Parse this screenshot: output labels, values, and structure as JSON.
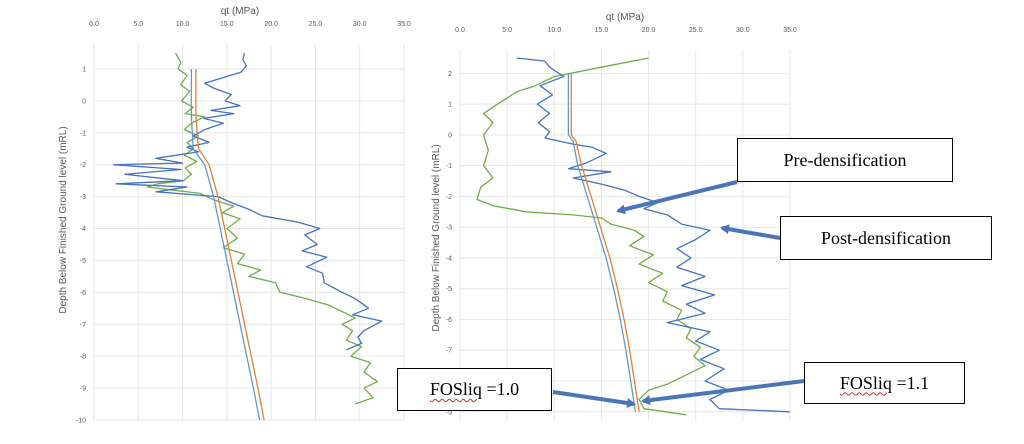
{
  "chart_data": [
    {
      "type": "line",
      "title": "qt (MPa)",
      "xlabel": "qt (MPa)",
      "ylabel": "Depth Below Finished Ground level (mRL)",
      "xlim": [
        0,
        35
      ],
      "ylim": [
        -10,
        1.5
      ],
      "x_ticks": [
        "0.0",
        "5.0",
        "10.0",
        "15.0",
        "20.0",
        "25.0",
        "30.0",
        "35.0"
      ],
      "y_ticks": [
        "1",
        "0",
        "-1",
        "-2",
        "-3",
        "-4",
        "-5",
        "-6",
        "-7",
        "-8",
        "-9",
        "-10"
      ],
      "y_tick_values": [
        1,
        0,
        -1,
        -2,
        -3,
        -4,
        -5,
        -6,
        -7,
        -8,
        -9,
        -10
      ],
      "grid": true,
      "series": [
        {
          "name": "Pre-densification",
          "color": "#70ad47",
          "points": [
            [
              9.2,
              1.5
            ],
            [
              9.8,
              1.2
            ],
            [
              9.5,
              1.0
            ],
            [
              10.5,
              0.8
            ],
            [
              9.8,
              0.5
            ],
            [
              10.8,
              0.3
            ],
            [
              9.9,
              0.0
            ],
            [
              11.2,
              -0.2
            ],
            [
              10.3,
              -0.4
            ],
            [
              12.5,
              -0.5
            ],
            [
              11.0,
              -0.7
            ],
            [
              10.2,
              -0.9
            ],
            [
              11.8,
              -1.1
            ],
            [
              10.5,
              -1.3
            ],
            [
              11.2,
              -1.5
            ],
            [
              10.2,
              -1.7
            ],
            [
              11.6,
              -1.9
            ],
            [
              10.3,
              -2.1
            ],
            [
              11.0,
              -2.3
            ],
            [
              10.1,
              -2.5
            ],
            [
              7.2,
              -2.6
            ],
            [
              6.0,
              -2.7
            ],
            [
              9.0,
              -2.8
            ],
            [
              12.0,
              -2.9
            ],
            [
              13.5,
              -3.1
            ],
            [
              15.8,
              -3.3
            ],
            [
              14.5,
              -3.5
            ],
            [
              16.5,
              -3.7
            ],
            [
              15.0,
              -4.0
            ],
            [
              16.2,
              -4.3
            ],
            [
              14.6,
              -4.6
            ],
            [
              17.0,
              -4.8
            ],
            [
              16.2,
              -5.1
            ],
            [
              18.8,
              -5.3
            ],
            [
              17.5,
              -5.5
            ],
            [
              20.5,
              -5.7
            ],
            [
              21.0,
              -6.0
            ],
            [
              24.0,
              -6.2
            ],
            [
              26.5,
              -6.4
            ],
            [
              28.0,
              -6.6
            ],
            [
              29.5,
              -6.8
            ],
            [
              28.0,
              -7.0
            ],
            [
              29.2,
              -7.2
            ],
            [
              28.5,
              -7.5
            ],
            [
              30.2,
              -7.7
            ],
            [
              29.0,
              -8.0
            ],
            [
              31.2,
              -8.2
            ],
            [
              30.5,
              -8.5
            ],
            [
              32.0,
              -8.8
            ],
            [
              30.5,
              -9.0
            ],
            [
              31.5,
              -9.3
            ],
            [
              29.5,
              -9.5
            ]
          ]
        },
        {
          "name": "Post-densification",
          "color": "#4472c4",
          "points": [
            [
              17.0,
              1.5
            ],
            [
              16.8,
              1.3
            ],
            [
              17.2,
              1.1
            ],
            [
              16.6,
              0.9
            ],
            [
              12.5,
              0.55
            ],
            [
              13.5,
              0.4
            ],
            [
              15.5,
              0.2
            ],
            [
              14.8,
              0.0
            ],
            [
              16.5,
              -0.15
            ],
            [
              13.2,
              -0.3
            ],
            [
              15.8,
              -0.4
            ],
            [
              12.4,
              -0.55
            ],
            [
              14.6,
              -0.7
            ],
            [
              12.5,
              -0.9
            ],
            [
              11.2,
              -1.1
            ],
            [
              13.0,
              -1.3
            ],
            [
              10.5,
              -1.45
            ],
            [
              11.8,
              -1.6
            ],
            [
              7.0,
              -1.8
            ],
            [
              10.0,
              -1.95
            ],
            [
              2.2,
              -2.0
            ],
            [
              9.8,
              -2.15
            ],
            [
              3.5,
              -2.3
            ],
            [
              10.0,
              -2.5
            ],
            [
              2.5,
              -2.6
            ],
            [
              10.5,
              -2.7
            ],
            [
              7.0,
              -2.85
            ],
            [
              14.0,
              -3.0
            ],
            [
              15.6,
              -3.2
            ],
            [
              17.5,
              -3.4
            ],
            [
              19.0,
              -3.6
            ],
            [
              23.0,
              -3.8
            ],
            [
              25.5,
              -4.0
            ],
            [
              23.8,
              -4.2
            ],
            [
              25.2,
              -4.5
            ],
            [
              23.5,
              -4.7
            ],
            [
              26.3,
              -4.9
            ],
            [
              24.0,
              -5.2
            ],
            [
              25.8,
              -5.4
            ],
            [
              26.0,
              -5.7
            ],
            [
              28.0,
              -6.0
            ],
            [
              29.5,
              -6.2
            ],
            [
              31.0,
              -6.5
            ],
            [
              29.2,
              -6.7
            ],
            [
              32.5,
              -6.9
            ],
            [
              30.5,
              -7.2
            ],
            [
              29.8,
              -7.4
            ],
            [
              30.2,
              -7.6
            ],
            [
              28.5,
              -7.8
            ]
          ]
        },
        {
          "name": "FOSliq =1.0",
          "color": "#5b9bd5",
          "points": [
            [
              11.0,
              1.0
            ],
            [
              11.0,
              -0.5
            ],
            [
              11.2,
              -1.5
            ],
            [
              12.5,
              -2.0
            ],
            [
              13.5,
              -3.0
            ],
            [
              15.0,
              -5.0
            ],
            [
              16.5,
              -7.0
            ],
            [
              18.0,
              -9.0
            ],
            [
              18.7,
              -10.0
            ]
          ]
        },
        {
          "name": "FOSliq =1.1",
          "color": "#ed7d31",
          "points": [
            [
              11.5,
              1.0
            ],
            [
              11.5,
              -0.5
            ],
            [
              11.8,
              -1.5
            ],
            [
              13.0,
              -2.0
            ],
            [
              14.0,
              -3.0
            ],
            [
              15.5,
              -5.0
            ],
            [
              17.0,
              -7.0
            ],
            [
              18.5,
              -9.0
            ],
            [
              19.2,
              -10.0
            ]
          ]
        }
      ]
    },
    {
      "type": "line",
      "title": "qt (MPa)",
      "xlabel": "qt (MPa)",
      "ylabel": "Depth Below Finished Ground level (mRL)",
      "xlim": [
        0,
        35
      ],
      "ylim": [
        -9.3,
        2.5
      ],
      "x_ticks": [
        "0.0",
        "5.0",
        "10.0",
        "15.0",
        "20.0",
        "25.0",
        "30.0",
        "35.0"
      ],
      "y_ticks": [
        "2",
        "1",
        "0",
        "-1",
        "-2",
        "-3",
        "-4",
        "-5",
        "-6",
        "-7",
        "-8",
        "-9"
      ],
      "y_tick_values": [
        2,
        1,
        0,
        -1,
        -2,
        -3,
        -4,
        -5,
        -6,
        -7,
        -8,
        -9
      ],
      "grid": true,
      "series": [
        {
          "name": "Pre-densification",
          "color": "#70ad47",
          "points": [
            [
              20.0,
              2.5
            ],
            [
              15.0,
              2.2
            ],
            [
              10.0,
              1.9
            ],
            [
              8.0,
              1.6
            ],
            [
              6.0,
              1.4
            ],
            [
              4.0,
              1.0
            ],
            [
              2.5,
              0.7
            ],
            [
              3.5,
              0.4
            ],
            [
              2.5,
              0.0
            ],
            [
              3.0,
              -0.5
            ],
            [
              2.5,
              -1.0
            ],
            [
              3.5,
              -1.4
            ],
            [
              2.2,
              -1.7
            ],
            [
              1.8,
              -2.1
            ],
            [
              3.5,
              -2.3
            ],
            [
              7.0,
              -2.5
            ],
            [
              12.0,
              -2.6
            ],
            [
              15.0,
              -2.7
            ],
            [
              16.0,
              -2.9
            ],
            [
              18.5,
              -3.1
            ],
            [
              19.5,
              -3.3
            ],
            [
              18.0,
              -3.6
            ],
            [
              20.5,
              -3.9
            ],
            [
              19.0,
              -4.2
            ],
            [
              21.5,
              -4.5
            ],
            [
              20.0,
              -4.8
            ],
            [
              22.0,
              -5.1
            ],
            [
              21.5,
              -5.4
            ],
            [
              23.5,
              -5.7
            ],
            [
              23.0,
              -6.0
            ],
            [
              24.5,
              -6.3
            ],
            [
              24.0,
              -6.6
            ],
            [
              25.5,
              -6.9
            ],
            [
              24.8,
              -7.2
            ],
            [
              26.0,
              -7.5
            ],
            [
              24.0,
              -7.8
            ],
            [
              22.0,
              -8.1
            ],
            [
              20.0,
              -8.3
            ],
            [
              19.0,
              -8.6
            ],
            [
              19.5,
              -8.9
            ],
            [
              24.0,
              -9.1
            ]
          ]
        },
        {
          "name": "Post-densification",
          "color": "#4472c4",
          "points": [
            [
              6.0,
              2.5
            ],
            [
              9.0,
              2.4
            ],
            [
              9.5,
              2.2
            ],
            [
              11.0,
              1.9
            ],
            [
              8.5,
              1.6
            ],
            [
              9.8,
              1.3
            ],
            [
              8.2,
              1.0
            ],
            [
              9.5,
              0.7
            ],
            [
              8.3,
              0.4
            ],
            [
              9.5,
              0.1
            ],
            [
              9.0,
              -0.1
            ],
            [
              12.0,
              -0.3
            ],
            [
              14.0,
              -0.4
            ],
            [
              15.5,
              -0.6
            ],
            [
              13.5,
              -0.9
            ],
            [
              11.5,
              -1.1
            ],
            [
              16.0,
              -1.2
            ],
            [
              12.0,
              -1.4
            ],
            [
              15.0,
              -1.6
            ],
            [
              17.5,
              -1.8
            ],
            [
              19.0,
              -2.0
            ],
            [
              21.0,
              -2.2
            ],
            [
              19.5,
              -2.4
            ],
            [
              22.0,
              -2.6
            ],
            [
              23.5,
              -2.9
            ],
            [
              26.5,
              -3.1
            ],
            [
              25.0,
              -3.4
            ],
            [
              23.0,
              -3.7
            ],
            [
              24.5,
              -4.0
            ],
            [
              23.0,
              -4.3
            ],
            [
              26.0,
              -4.6
            ],
            [
              23.5,
              -4.9
            ],
            [
              27.0,
              -5.2
            ],
            [
              24.0,
              -5.5
            ],
            [
              26.0,
              -5.8
            ],
            [
              22.0,
              -6.1
            ],
            [
              26.5,
              -6.4
            ],
            [
              25.0,
              -6.7
            ],
            [
              27.5,
              -7.0
            ],
            [
              25.5,
              -7.3
            ],
            [
              28.0,
              -7.6
            ],
            [
              26.0,
              -8.0
            ],
            [
              28.5,
              -8.3
            ],
            [
              26.5,
              -8.6
            ],
            [
              27.5,
              -8.9
            ],
            [
              35.0,
              -9.0
            ]
          ]
        },
        {
          "name": "FOSliq =1.0",
          "color": "#5b9bd5",
          "points": [
            [
              11.5,
              2.0
            ],
            [
              11.5,
              0.0
            ],
            [
              12.0,
              -0.2
            ],
            [
              12.5,
              -1.0
            ],
            [
              13.5,
              -2.0
            ],
            [
              14.5,
              -3.0
            ],
            [
              15.5,
              -4.0
            ],
            [
              16.3,
              -5.0
            ],
            [
              17.0,
              -6.0
            ],
            [
              17.6,
              -7.0
            ],
            [
              18.1,
              -8.0
            ],
            [
              18.6,
              -9.0
            ]
          ]
        },
        {
          "name": "FOSliq =1.1",
          "color": "#ed7d31",
          "points": [
            [
              11.8,
              2.0
            ],
            [
              11.8,
              0.0
            ],
            [
              12.3,
              -0.2
            ],
            [
              12.9,
              -1.0
            ],
            [
              13.9,
              -2.0
            ],
            [
              14.9,
              -3.0
            ],
            [
              15.9,
              -4.0
            ],
            [
              16.7,
              -5.0
            ],
            [
              17.4,
              -6.0
            ],
            [
              18.0,
              -7.0
            ],
            [
              18.5,
              -8.0
            ],
            [
              19.0,
              -9.0
            ]
          ]
        }
      ]
    }
  ],
  "annotations": {
    "pre": "Pre-densification",
    "post": "Post-densification",
    "fos10_word": "FOSliq",
    "fos10_rest": " =1.0",
    "fos11_word": "FOSliq",
    "fos11_rest": " =1.1"
  }
}
